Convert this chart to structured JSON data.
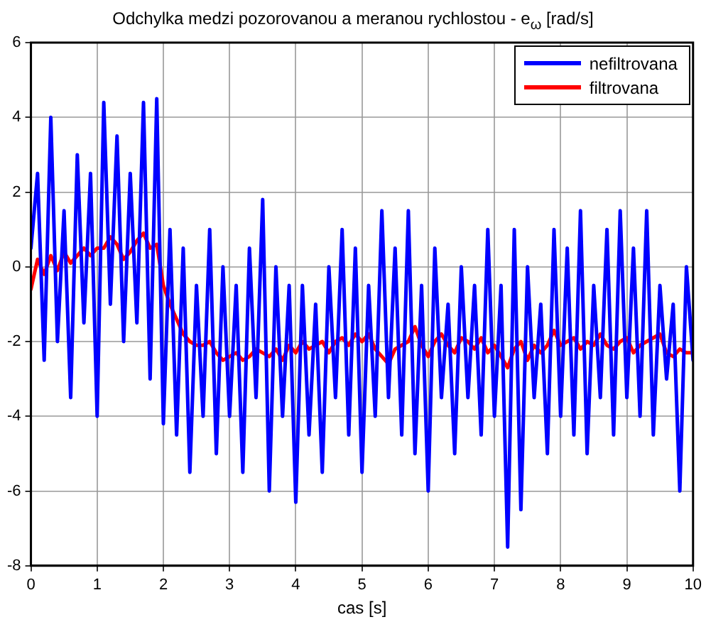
{
  "chart_data": {
    "type": "line",
    "title": "Odchylka medzi pozorovanou a meranou rychlostou - e$_{ω}$ [rad/s]",
    "xlabel": "cas [s]",
    "x": [
      0,
      0.1,
      0.2,
      0.3,
      0.4,
      0.5,
      0.6,
      0.7,
      0.8,
      0.9,
      1,
      1.1,
      1.2,
      1.3,
      1.4,
      1.5,
      1.6,
      1.7,
      1.8,
      1.9,
      2,
      2.1,
      2.2,
      2.3,
      2.4,
      2.5,
      2.6,
      2.7,
      2.8,
      2.9,
      3,
      3.1,
      3.2,
      3.3,
      3.4,
      3.5,
      3.6,
      3.7,
      3.8,
      3.9,
      4,
      4.1,
      4.2,
      4.3,
      4.4,
      4.5,
      4.6,
      4.7,
      4.8,
      4.9,
      5,
      5.1,
      5.2,
      5.3,
      5.4,
      5.5,
      5.6,
      5.7,
      5.8,
      5.9,
      6,
      6.1,
      6.2,
      6.3,
      6.4,
      6.5,
      6.6,
      6.7,
      6.8,
      6.9,
      7,
      7.1,
      7.2,
      7.3,
      7.4,
      7.5,
      7.6,
      7.7,
      7.8,
      7.9,
      8,
      8.1,
      8.2,
      8.3,
      8.4,
      8.5,
      8.6,
      8.7,
      8.8,
      8.9,
      9,
      9.1,
      9.2,
      9.3,
      9.4,
      9.5,
      9.6,
      9.7,
      9.8,
      9.9,
      10
    ],
    "series": [
      {
        "name": "nefiltrovana",
        "color": "#0000ff",
        "values": [
          0.5,
          2.5,
          -2.5,
          4,
          -2,
          1.5,
          -3.5,
          3,
          -1.5,
          2.5,
          -4,
          4.4,
          -1,
          3.5,
          -2,
          2.5,
          -1.5,
          4.4,
          -3,
          4.5,
          -4.2,
          1,
          -4.5,
          0.5,
          -5.5,
          -0.5,
          -4,
          1,
          -5,
          0,
          -4,
          -0.5,
          -5.5,
          0.5,
          -3.5,
          1.8,
          -6,
          0,
          -4,
          -0.5,
          -6.3,
          -0.5,
          -4.5,
          -1,
          -5.5,
          0,
          -3.5,
          1,
          -4.5,
          0.5,
          -5.5,
          -0.5,
          -4,
          1.5,
          -3.5,
          0.5,
          -4.5,
          1.5,
          -5,
          -0.5,
          -6,
          0.5,
          -3.5,
          -1,
          -5,
          0,
          -3.5,
          -0.5,
          -4.5,
          1,
          -4,
          -0.5,
          -7.5,
          1,
          -6.5,
          0,
          -3.5,
          -1,
          -5,
          1,
          -4,
          0.5,
          -4.5,
          1.5,
          -5,
          -0.5,
          -3.5,
          1,
          -4.5,
          1.5,
          -3.5,
          0.5,
          -4,
          1.5,
          -4.5,
          -0.5,
          -3,
          -1,
          -6,
          0,
          -2.5
        ]
      },
      {
        "name": "filtrovana",
        "color": "#ff0000",
        "values": [
          -0.6,
          0.2,
          -0.2,
          0.3,
          -0.1,
          0.4,
          0.1,
          0.3,
          0.5,
          0.3,
          0.5,
          0.5,
          0.8,
          0.6,
          0.2,
          0.4,
          0.7,
          0.9,
          0.5,
          0.6,
          -0.5,
          -1,
          -1.4,
          -1.8,
          -2,
          -2.1,
          -2.1,
          -2,
          -2.3,
          -2.5,
          -2.4,
          -2.3,
          -2.5,
          -2.4,
          -2.2,
          -2.3,
          -2.4,
          -2.2,
          -2.5,
          -2.1,
          -2.3,
          -2,
          -2.2,
          -2.1,
          -2,
          -2.3,
          -2,
          -1.9,
          -2.1,
          -1.8,
          -2,
          -1.8,
          -2.2,
          -2.4,
          -2.6,
          -2.2,
          -2.1,
          -2,
          -1.6,
          -2.1,
          -2.4,
          -2,
          -1.8,
          -2.1,
          -2.3,
          -1.9,
          -2,
          -2.2,
          -1.9,
          -2.3,
          -2.1,
          -2.4,
          -2.7,
          -2.2,
          -2,
          -2.5,
          -2.1,
          -2.3,
          -2.1,
          -1.7,
          -2.1,
          -2,
          -1.9,
          -2.2,
          -2,
          -2.1,
          -1.8,
          -2.1,
          -2.2,
          -2,
          -1.9,
          -2.3,
          -2.1,
          -2,
          -1.9,
          -1.8,
          -2.3,
          -2.4,
          -2.2,
          -2.3,
          -2.3
        ]
      }
    ],
    "xlim": [
      0,
      10
    ],
    "xticks": [
      0,
      1,
      2,
      3,
      4,
      5,
      6,
      7,
      8,
      9,
      10
    ],
    "ylim": [
      -8,
      6
    ],
    "yticks": [
      -8,
      -6,
      -4,
      -2,
      0,
      2,
      4,
      6
    ],
    "grid": true,
    "legend": "top right",
    "marker": "none",
    "line_style": "solid"
  }
}
